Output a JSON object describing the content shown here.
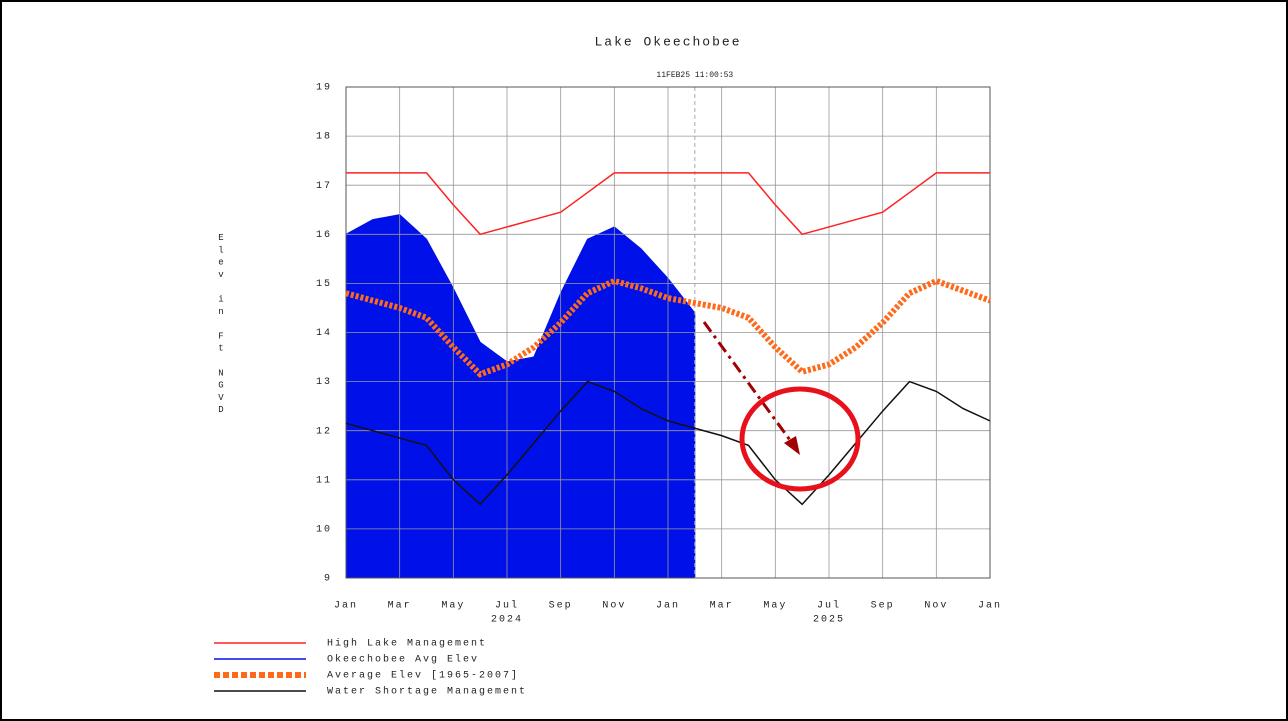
{
  "chart_data": {
    "type": "line",
    "title": "Lake Okeechobee",
    "timestamp": "11FEB25 11:00:53",
    "y_label": "Elev in Ft NGVD",
    "x": [
      "2024-01",
      "2024-02",
      "2024-03",
      "2024-04",
      "2024-05",
      "2024-06",
      "2024-07",
      "2024-08",
      "2024-09",
      "2024-10",
      "2024-11",
      "2024-12",
      "2025-01",
      "2025-02",
      "2025-03",
      "2025-04",
      "2025-05",
      "2025-06",
      "2025-07",
      "2025-08",
      "2025-09",
      "2025-10",
      "2025-11",
      "2025-12",
      "2026-01"
    ],
    "xlim": [
      "2024-01",
      "2026-01"
    ],
    "xticks": [
      {
        "value": "2024-01",
        "label": "Jan"
      },
      {
        "value": "2024-03",
        "label": "Mar"
      },
      {
        "value": "2024-05",
        "label": "May"
      },
      {
        "value": "2024-07",
        "label": "Jul"
      },
      {
        "value": "2024-09",
        "label": "Sep"
      },
      {
        "value": "2024-11",
        "label": "Nov"
      },
      {
        "value": "2025-01",
        "label": "Jan"
      },
      {
        "value": "2025-03",
        "label": "Mar"
      },
      {
        "value": "2025-05",
        "label": "May"
      },
      {
        "value": "2025-07",
        "label": "Jul"
      },
      {
        "value": "2025-09",
        "label": "Sep"
      },
      {
        "value": "2025-11",
        "label": "Nov"
      },
      {
        "value": "2026-01",
        "label": "Jan"
      }
    ],
    "year_labels": [
      {
        "value": "2024-07",
        "label": "2024"
      },
      {
        "value": "2025-07",
        "label": "2025"
      }
    ],
    "ylim": [
      9,
      19
    ],
    "yticks": [
      9,
      10,
      11,
      12,
      13,
      14,
      15,
      16,
      17,
      18,
      19
    ],
    "grid": true,
    "series": [
      {
        "name": "High Lake Management",
        "color": "#ff2020",
        "style": "solid",
        "values": [
          17.25,
          17.25,
          17.25,
          17.25,
          16.6,
          16.0,
          16.15,
          16.3,
          16.45,
          16.85,
          17.25,
          17.25,
          17.25,
          17.25,
          17.25,
          17.25,
          16.6,
          16.0,
          16.15,
          16.3,
          16.45,
          16.85,
          17.25,
          17.25,
          17.25
        ]
      },
      {
        "name": "Okeechobee Avg Elev",
        "color": "#0010e8",
        "style": "area",
        "values": [
          16.0,
          16.3,
          16.4,
          15.9,
          14.9,
          13.8,
          13.4,
          13.5,
          14.8,
          15.9,
          16.15,
          15.7,
          15.1,
          14.4,
          null,
          null,
          null,
          null,
          null,
          null,
          null,
          null,
          null,
          null,
          null
        ]
      },
      {
        "name": "Average Elev [1965-2007]",
        "color": "#ff6a1a",
        "style": "dotted",
        "values": [
          14.8,
          14.65,
          14.5,
          14.3,
          13.7,
          13.15,
          13.35,
          13.7,
          14.2,
          14.8,
          15.05,
          14.9,
          14.7,
          14.6,
          14.5,
          14.3,
          13.7,
          13.2,
          13.35,
          13.7,
          14.2,
          14.8,
          15.05,
          14.85,
          14.65
        ]
      },
      {
        "name": "Water Shortage Management",
        "color": "#111111",
        "style": "solid",
        "values": [
          12.15,
          12.0,
          11.85,
          11.7,
          11.0,
          10.5,
          11.1,
          11.75,
          12.4,
          13.0,
          12.8,
          12.45,
          12.2,
          12.05,
          11.9,
          11.7,
          11.0,
          10.5,
          11.1,
          11.75,
          12.4,
          13.0,
          12.8,
          12.45,
          12.2
        ]
      }
    ]
  }
}
